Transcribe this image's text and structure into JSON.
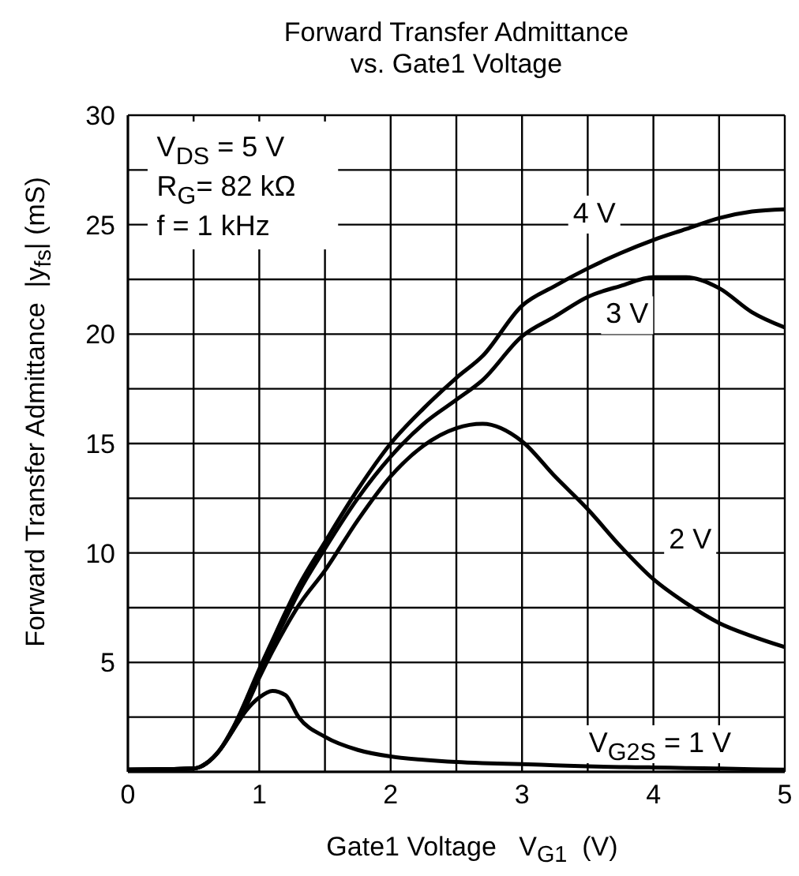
{
  "chart_data": {
    "type": "line",
    "title": "Forward Transfer Admittance\nvs. Gate1 Voltage",
    "xlabel": "Gate1 Voltage   V$_{G1}$  (V)",
    "ylabel": "Forward Transfer Admittance  |y$_{fs}$| (mS)",
    "annotations": [
      "V$_{DS}$ = 5 V",
      "R$_{G}$= 82 kΩ",
      "f = 1 kHz"
    ],
    "x": [
      0,
      0.5,
      0.6,
      0.7,
      0.8,
      0.9,
      1,
      1.1,
      1.2,
      1.3,
      1.5,
      1.75,
      2,
      2.25,
      2.5,
      2.7,
      3,
      3.25,
      3.5,
      3.75,
      4,
      4.25,
      4.5,
      4.75,
      5
    ],
    "series": [
      {
        "name": "4 V",
        "color": "#000000",
        "values": [
          0.1,
          0.15,
          0.4,
          1.0,
          2.0,
          3.3,
          4.7,
          6.0,
          7.3,
          8.5,
          10.5,
          12.9,
          15.0,
          16.6,
          18.0,
          19.0,
          21.3,
          22.2,
          23.0,
          23.7,
          24.3,
          24.8,
          25.3,
          25.6,
          25.7
        ]
      },
      {
        "name": "3 V",
        "color": "#000000",
        "values": [
          0.1,
          0.15,
          0.4,
          1.0,
          2.0,
          3.2,
          4.5,
          5.8,
          7.0,
          8.2,
          10.2,
          12.5,
          14.4,
          15.9,
          17.0,
          17.9,
          19.9,
          20.8,
          21.7,
          22.2,
          22.6,
          22.6,
          22.1,
          21.0,
          20.3
        ]
      },
      {
        "name": "2 V",
        "color": "#000000",
        "values": [
          0.1,
          0.15,
          0.4,
          1.0,
          1.9,
          3.0,
          4.3,
          5.5,
          6.6,
          7.6,
          9.2,
          11.5,
          13.5,
          14.9,
          15.7,
          15.9,
          15.1,
          13.5,
          12.0,
          10.3,
          8.8,
          7.7,
          6.8,
          6.2,
          5.7
        ]
      },
      {
        "name": "V$_{G2S}$ = 1 V",
        "color": "#000000",
        "values": [
          0.1,
          0.15,
          0.4,
          1.0,
          1.9,
          2.8,
          3.4,
          3.7,
          3.5,
          2.5,
          1.6,
          1.0,
          0.7,
          0.55,
          0.45,
          0.4,
          0.35,
          0.3,
          0.25,
          0.22,
          0.2,
          0.17,
          0.15,
          0.12,
          0.1
        ]
      }
    ],
    "xlim": [
      0,
      5
    ],
    "xticks": [
      0,
      {
        "value": 0.5,
        "label": null
      },
      1,
      {
        "value": 1.5,
        "label": null
      },
      2,
      {
        "value": 2.5,
        "label": null
      },
      3,
      {
        "value": 3.5,
        "label": null
      },
      4,
      {
        "value": 4.5,
        "label": null
      },
      5
    ],
    "ylim": [
      0,
      30
    ],
    "yticks": [
      {
        "value": 0,
        "label": null
      },
      {
        "value": 2.5,
        "label": null
      },
      5,
      {
        "value": 7.5,
        "label": null
      },
      10,
      {
        "value": 12.5,
        "label": null
      },
      15,
      {
        "value": 17.5,
        "label": null
      },
      20,
      {
        "value": 22.5,
        "label": null
      },
      25,
      {
        "value": 27.5,
        "label": null
      },
      30
    ],
    "grid": true
  }
}
